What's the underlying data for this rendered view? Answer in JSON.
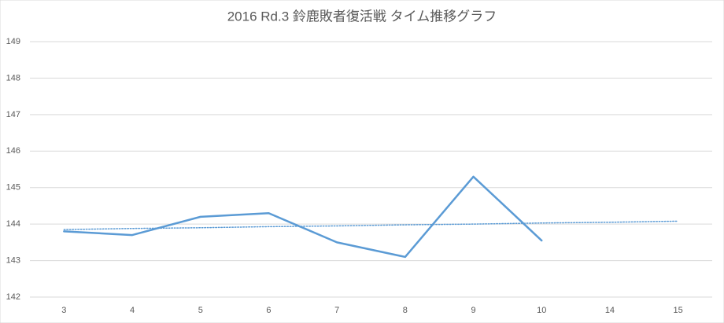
{
  "chart_data": {
    "type": "line",
    "title": "2016 Rd.3 鈴鹿敗者復活戦 タイム推移グラフ",
    "categories": [
      "3",
      "4",
      "5",
      "6",
      "7",
      "8",
      "9",
      "10",
      "14",
      "15"
    ],
    "series": [
      {
        "color": "#5b9bd5",
        "style": "solid",
        "values": [
          143.8,
          143.7,
          144.2,
          144.3,
          143.5,
          143.1,
          145.3,
          143.55,
          null,
          null
        ]
      },
      {
        "color": "#5b9bd5",
        "style": "dotted",
        "values": [
          143.85,
          143.88,
          143.9,
          143.93,
          143.95,
          143.98,
          144.0,
          144.03,
          144.05,
          144.08
        ]
      }
    ],
    "ylim": [
      142,
      149
    ],
    "yticks": [
      142,
      143,
      144,
      145,
      146,
      147,
      148,
      149
    ],
    "grid": true
  }
}
